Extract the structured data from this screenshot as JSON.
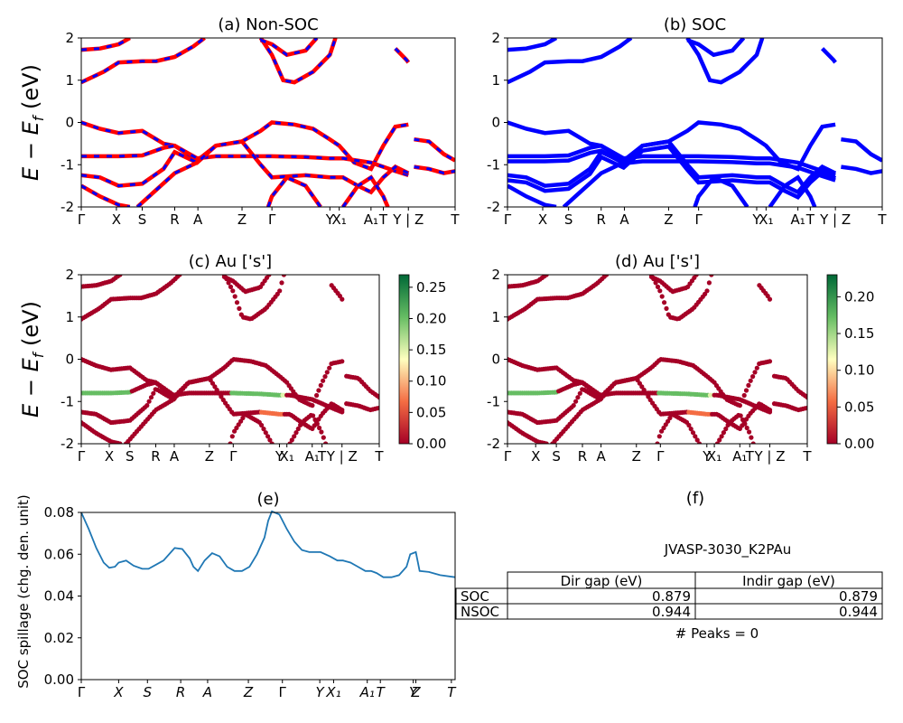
{
  "figure_title": "JVASP-3030_K2PAu",
  "kpath_labels": [
    "Γ",
    "X",
    "S",
    "R",
    "A",
    "Z",
    "Γ",
    "Y",
    "X₁",
    "A₁",
    "T",
    "Y | Z",
    "T"
  ],
  "kpath_labels_italic": [
    "Γ",
    "X",
    "S",
    "R",
    "A",
    "Z",
    "Γ",
    "Y",
    "X₁",
    "A₁",
    "T",
    "Y",
    "Z",
    "T"
  ],
  "kpath_ticks": [
    0,
    0.094,
    0.163,
    0.25,
    0.312,
    0.43,
    0.51,
    0.665,
    0.685,
    0.775,
    0.808,
    0.875,
    0.91,
    1.0
  ],
  "chart_data": [
    {
      "panel": "a",
      "type": "line",
      "title": "(a) Non-SOC",
      "ylabel": "E − E_f (eV)",
      "ylim": [
        -2,
        2
      ],
      "yticks": [
        -2,
        -1,
        0,
        1,
        2
      ],
      "style": "red solid + blue dashed overlay",
      "bands_description": "band structure along high-symmetry path"
    },
    {
      "panel": "b",
      "type": "line",
      "title": "(b) SOC",
      "ylim": [
        -2,
        2
      ],
      "yticks": [
        -2,
        -1,
        0,
        1,
        2
      ],
      "style": "blue solid"
    },
    {
      "panel": "c",
      "type": "scatter",
      "title": "(c)  Au ['s']",
      "ylabel": "E − E_f (eV)",
      "ylim": [
        -2,
        2
      ],
      "yticks": [
        -2,
        -1,
        0,
        1,
        2
      ],
      "colorbar": {
        "cmap": "RdYlGn",
        "min": 0.0,
        "max": 0.27,
        "ticks": [
          "0.00",
          "0.05",
          "0.10",
          "0.15",
          "0.20",
          "0.25"
        ]
      }
    },
    {
      "panel": "d",
      "type": "scatter",
      "title": "(d) Au ['s']",
      "ylim": [
        -2,
        2
      ],
      "yticks": [
        -2,
        -1,
        0,
        1,
        2
      ],
      "colorbar": {
        "cmap": "RdYlGn",
        "min": 0.0,
        "max": 0.23,
        "ticks": [
          "0.00",
          "0.05",
          "0.10",
          "0.15",
          "0.20"
        ]
      }
    },
    {
      "panel": "e",
      "type": "line",
      "title": "(e)",
      "ylabel": "SOC spillage (chg. den. unit)",
      "ylim": [
        0,
        0.08
      ],
      "yticks": [
        "0.00",
        "0.02",
        "0.04",
        "0.06",
        "0.08"
      ],
      "color": "#1f77b4",
      "x": [
        0,
        0.02,
        0.04,
        0.06,
        0.075,
        0.09,
        0.1,
        0.12,
        0.14,
        0.163,
        0.18,
        0.2,
        0.22,
        0.24,
        0.25,
        0.27,
        0.29,
        0.3,
        0.312,
        0.33,
        0.35,
        0.37,
        0.39,
        0.41,
        0.43,
        0.45,
        0.47,
        0.49,
        0.5,
        0.51,
        0.53,
        0.55,
        0.57,
        0.59,
        0.61,
        0.64,
        0.665,
        0.685,
        0.7,
        0.72,
        0.74,
        0.76,
        0.775,
        0.79,
        0.808,
        0.83,
        0.85,
        0.87,
        0.88,
        0.895,
        0.905,
        0.93,
        0.96,
        1.0
      ],
      "values": [
        0.08,
        0.072,
        0.063,
        0.056,
        0.0535,
        0.054,
        0.056,
        0.057,
        0.0545,
        0.053,
        0.053,
        0.055,
        0.057,
        0.061,
        0.063,
        0.0625,
        0.058,
        0.054,
        0.052,
        0.057,
        0.0605,
        0.059,
        0.054,
        0.052,
        0.052,
        0.054,
        0.06,
        0.068,
        0.076,
        0.0805,
        0.079,
        0.072,
        0.066,
        0.062,
        0.061,
        0.061,
        0.059,
        0.057,
        0.057,
        0.056,
        0.054,
        0.052,
        0.052,
        0.051,
        0.049,
        0.049,
        0.05,
        0.054,
        0.06,
        0.061,
        0.052,
        0.0515,
        0.05,
        0.049
      ]
    },
    {
      "panel": "f",
      "type": "table",
      "title": "(f)",
      "subtitle": "JVASP-3030_K2PAu",
      "columns": [
        "",
        "Dir gap (eV)",
        "Indir gap (eV)"
      ],
      "rows": [
        [
          "SOC",
          "0.879",
          "0.879"
        ],
        [
          "NSOC",
          "0.944",
          "0.944"
        ]
      ],
      "footer": "# Peaks = 0"
    }
  ]
}
